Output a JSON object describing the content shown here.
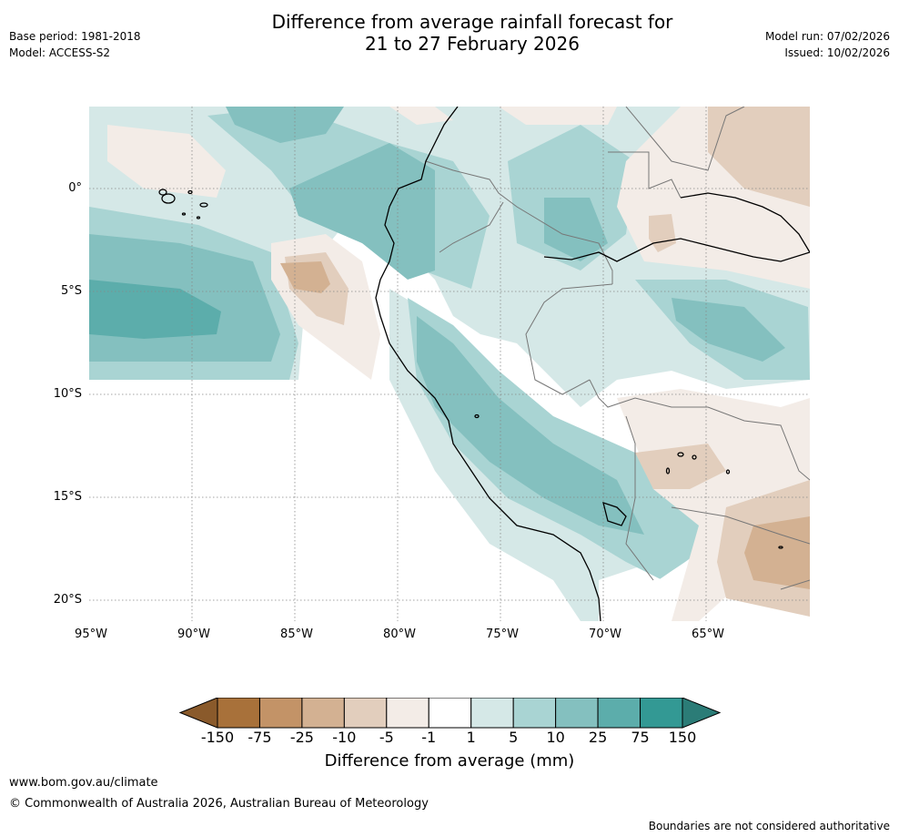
{
  "header": {
    "title_line1": "Difference from average rainfall forecast for",
    "title_line2": "21 to 27 February 2026",
    "base_period": "Base period: 1981-2018",
    "model": "Model: ACCESS-S2",
    "model_run": "Model run: 07/02/2026",
    "issued": "Issued: 10/02/2026"
  },
  "map": {
    "lat_labels": [
      "0°",
      "5°S",
      "10°S",
      "15°S",
      "20°S"
    ],
    "lon_labels": [
      "95°W",
      "90°W",
      "85°W",
      "80°W",
      "75°W",
      "70°W",
      "65°W"
    ]
  },
  "colorbar": {
    "ticks": [
      "-150",
      "-75",
      "-25",
      "-10",
      "-5",
      "-1",
      "1",
      "5",
      "10",
      "25",
      "75",
      "150"
    ],
    "colors": [
      "#a8713a",
      "#c39367",
      "#d3b192",
      "#e2cebd",
      "#f3ece7",
      "#ffffff",
      "#d5e8e7",
      "#a9d4d3",
      "#84c0bf",
      "#5cadab",
      "#339994"
    ],
    "under_color": "#8a5a2b",
    "over_color": "#2b7c77",
    "label": "Difference from average (mm)"
  },
  "footer": {
    "website": "www.bom.gov.au/climate",
    "copyright": "© Commonwealth of Australia 2026, Australian Bureau of Meteorology",
    "disclaimer": "Boundaries are not considered authoritative"
  }
}
